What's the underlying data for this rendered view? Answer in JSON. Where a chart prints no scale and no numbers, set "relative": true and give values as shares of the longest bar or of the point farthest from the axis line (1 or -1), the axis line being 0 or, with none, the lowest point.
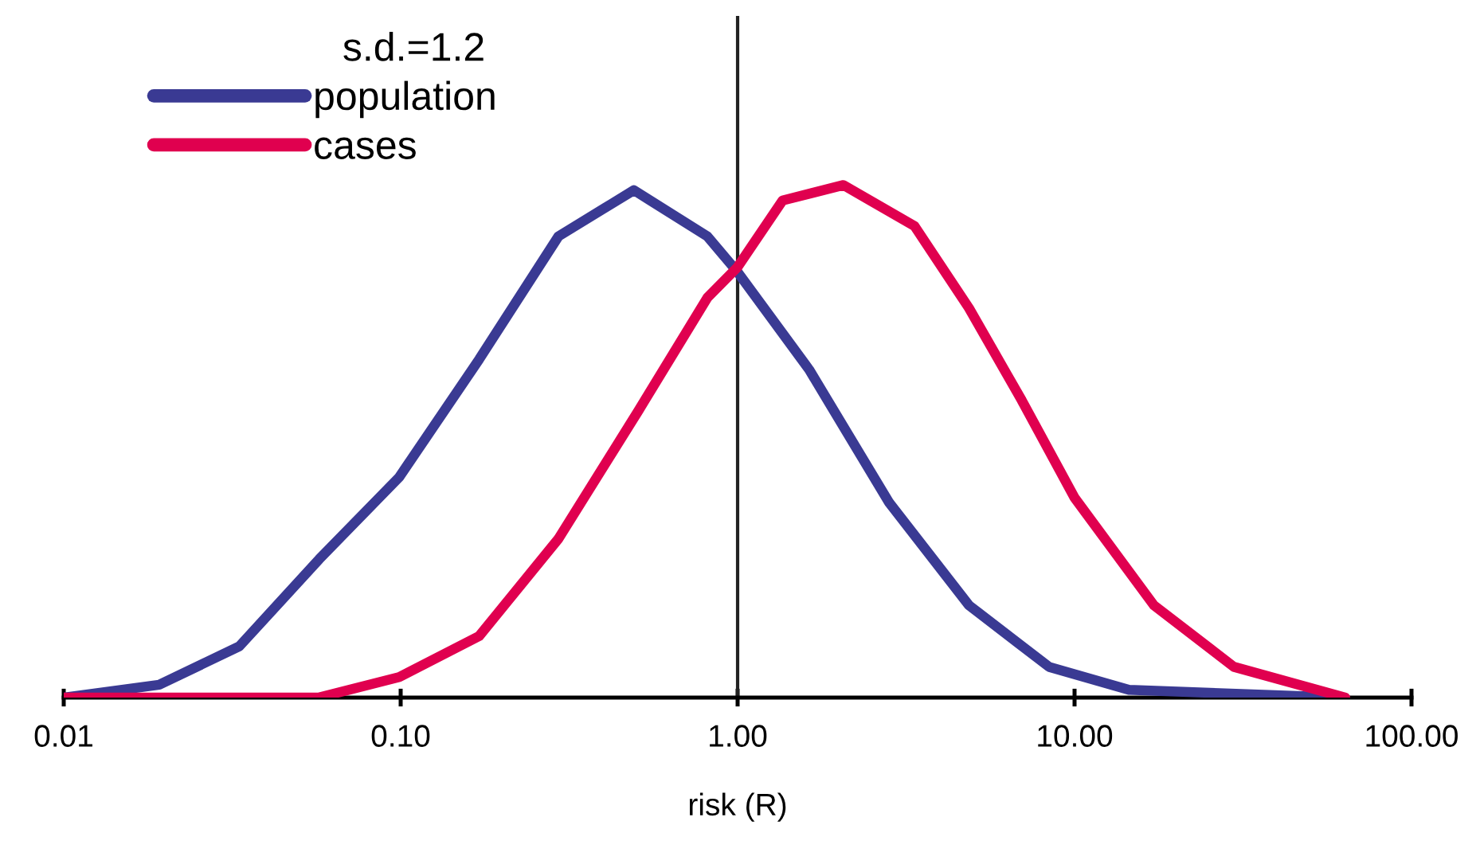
{
  "chart_data": {
    "type": "line",
    "relative": true,
    "log": "x",
    "xlabel": "risk (R)",
    "legend_title": "s.d.=1.2",
    "legend": "top left",
    "grid": false,
    "tick_labels": "x",
    "line_style": "solid",
    "xlim": [
      0.01,
      100
    ],
    "xticks": [
      0.01,
      {
        "value": 0.1,
        "label": "0.10"
      },
      {
        "value": 1,
        "label": "1.00"
      },
      {
        "value": 10,
        "label": "10.00"
      },
      {
        "value": 100,
        "label": "100.00"
      }
    ],
    "ref_lines": [
      {
        "axis": "x",
        "value": 1,
        "color": "#222222"
      }
    ],
    "series": [
      {
        "name": "population",
        "color": "#3a3a93",
        "x": [
          0.01,
          0.0192,
          0.0332,
          0.0573,
          0.099,
          0.171,
          0.294,
          0.492,
          0.813,
          1.0,
          1.63,
          2.82,
          4.86,
          8.4,
          14.5,
          62
        ],
        "values": [
          0.0,
          0.025,
          0.1,
          0.27,
          0.43,
          0.66,
          0.9,
          0.99,
          0.9,
          0.83,
          0.64,
          0.38,
          0.18,
          0.06,
          0.015,
          0.0
        ]
      },
      {
        "name": "cases",
        "color": "#e0004f",
        "x": [
          0.01,
          0.057,
          0.099,
          0.171,
          0.294,
          0.508,
          0.813,
          1.0,
          1.36,
          2.06,
          3.35,
          4.86,
          6.97,
          10.0,
          17.2,
          29.7,
          63.6
        ],
        "values": [
          0.0,
          0.0,
          0.04,
          0.12,
          0.31,
          0.56,
          0.78,
          0.84,
          0.97,
          1.0,
          0.92,
          0.76,
          0.58,
          0.39,
          0.18,
          0.06,
          0.0
        ]
      }
    ]
  }
}
